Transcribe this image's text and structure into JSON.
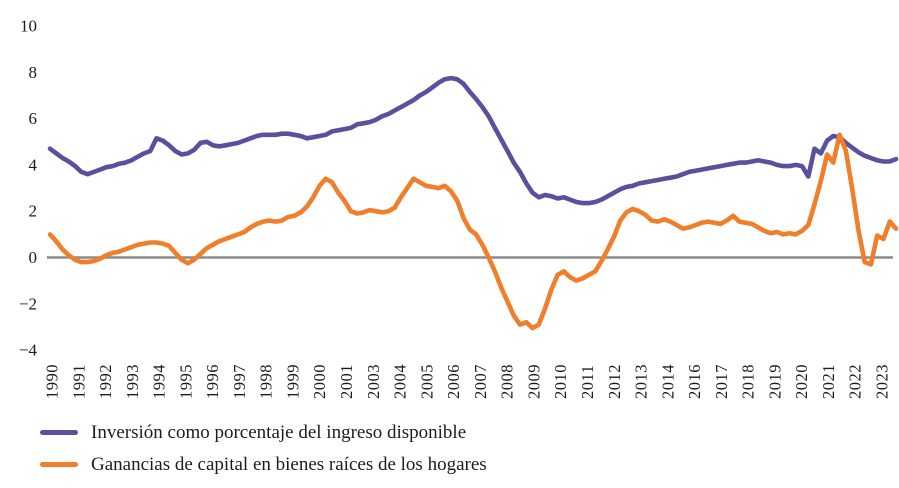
{
  "chart_data": {
    "type": "line",
    "title": "",
    "xlabel": "",
    "ylabel": "",
    "ylim": [
      -4,
      10
    ],
    "grid": false,
    "legend_position": "bottom-left",
    "x_frequency": "quarterly",
    "x_range": [
      "1990",
      "2023"
    ],
    "y_ticks": [
      {
        "label": "10",
        "value": 10
      },
      {
        "label": "8",
        "value": 8
      },
      {
        "label": "6",
        "value": 6
      },
      {
        "label": "4",
        "value": 4
      },
      {
        "label": "2",
        "value": 2
      },
      {
        "label": "0",
        "value": 0
      },
      {
        "label": "−2",
        "value": -2
      },
      {
        "label": "−4",
        "value": -4
      }
    ],
    "x_tick_labels": [
      "1990",
      "1991",
      "1992",
      "1993",
      "1994",
      "1995",
      "1996",
      "1997",
      "1998",
      "1999",
      "2000",
      "2001",
      "2003",
      "2004",
      "2005",
      "2006",
      "2007",
      "2008",
      "2009",
      "2010",
      "2011",
      "2012",
      "2013",
      "2014",
      "2016",
      "2017",
      "2018",
      "2019",
      "2020",
      "2021",
      "2022",
      "2023"
    ],
    "zero_axis_color": "#8c8c8c",
    "text_color": "#1c1c1c",
    "series": [
      {
        "name": "Inversión como porcentaje del ingreso disponible",
        "color": "#5a519e",
        "values": [
          4.7,
          4.5,
          4.3,
          4.15,
          3.95,
          3.7,
          3.6,
          3.7,
          3.8,
          3.9,
          3.95,
          4.05,
          4.1,
          4.2,
          4.35,
          4.5,
          4.6,
          5.15,
          5.05,
          4.85,
          4.6,
          4.45,
          4.5,
          4.65,
          4.95,
          5.0,
          4.85,
          4.8,
          4.85,
          4.9,
          4.95,
          5.05,
          5.15,
          5.25,
          5.3,
          5.3,
          5.3,
          5.35,
          5.35,
          5.3,
          5.25,
          5.15,
          5.2,
          5.25,
          5.3,
          5.45,
          5.5,
          5.55,
          5.6,
          5.75,
          5.8,
          5.85,
          5.95,
          6.1,
          6.2,
          6.35,
          6.5,
          6.65,
          6.8,
          7.0,
          7.15,
          7.35,
          7.55,
          7.7,
          7.75,
          7.7,
          7.5,
          7.15,
          6.85,
          6.5,
          6.1,
          5.6,
          5.1,
          4.6,
          4.1,
          3.7,
          3.2,
          2.8,
          2.6,
          2.7,
          2.65,
          2.55,
          2.6,
          2.5,
          2.4,
          2.35,
          2.35,
          2.4,
          2.5,
          2.65,
          2.8,
          2.95,
          3.05,
          3.1,
          3.2,
          3.25,
          3.3,
          3.35,
          3.4,
          3.45,
          3.5,
          3.6,
          3.7,
          3.75,
          3.8,
          3.85,
          3.9,
          3.95,
          4.0,
          4.05,
          4.1,
          4.1,
          4.15,
          4.2,
          4.15,
          4.1,
          4.0,
          3.95,
          3.95,
          4.0,
          3.95,
          3.5,
          4.7,
          4.5,
          5.05,
          5.25,
          5.2,
          4.95,
          4.75,
          4.55,
          4.4,
          4.3,
          4.2,
          4.15,
          4.15,
          4.25
        ]
      },
      {
        "name": "Ganancias de capital en bienes raíces de los hogares",
        "color": "#f07e2a",
        "values": [
          1.0,
          0.7,
          0.35,
          0.1,
          -0.1,
          -0.2,
          -0.2,
          -0.15,
          -0.05,
          0.1,
          0.2,
          0.25,
          0.35,
          0.45,
          0.55,
          0.6,
          0.65,
          0.65,
          0.6,
          0.5,
          0.2,
          -0.1,
          -0.25,
          -0.1,
          0.15,
          0.4,
          0.55,
          0.7,
          0.8,
          0.9,
          1.0,
          1.1,
          1.3,
          1.45,
          1.55,
          1.6,
          1.55,
          1.6,
          1.75,
          1.8,
          1.95,
          2.2,
          2.6,
          3.1,
          3.4,
          3.25,
          2.8,
          2.45,
          2.0,
          1.9,
          1.95,
          2.05,
          2.0,
          1.95,
          2.0,
          2.15,
          2.6,
          3.0,
          3.4,
          3.25,
          3.1,
          3.05,
          3.0,
          3.1,
          2.85,
          2.45,
          1.7,
          1.2,
          1.0,
          0.55,
          0.0,
          -0.6,
          -1.3,
          -1.9,
          -2.5,
          -2.9,
          -2.8,
          -3.05,
          -2.9,
          -2.2,
          -1.4,
          -0.75,
          -0.6,
          -0.85,
          -1.0,
          -0.9,
          -0.75,
          -0.6,
          -0.15,
          0.35,
          0.9,
          1.6,
          1.95,
          2.1,
          2.0,
          1.85,
          1.6,
          1.55,
          1.65,
          1.55,
          1.4,
          1.25,
          1.3,
          1.4,
          1.5,
          1.55,
          1.5,
          1.45,
          1.6,
          1.8,
          1.55,
          1.5,
          1.45,
          1.3,
          1.15,
          1.05,
          1.1,
          1.0,
          1.05,
          1.0,
          1.15,
          1.4,
          2.3,
          3.3,
          4.45,
          4.1,
          5.3,
          4.6,
          3.0,
          1.2,
          -0.2,
          -0.3,
          0.95,
          0.8,
          1.55,
          1.25
        ]
      }
    ]
  },
  "legend": {
    "items": [
      {
        "label": "Inversión como porcentaje del ingreso disponible"
      },
      {
        "label": "Ganancias de capital en bienes raíces de los hogares"
      }
    ]
  }
}
